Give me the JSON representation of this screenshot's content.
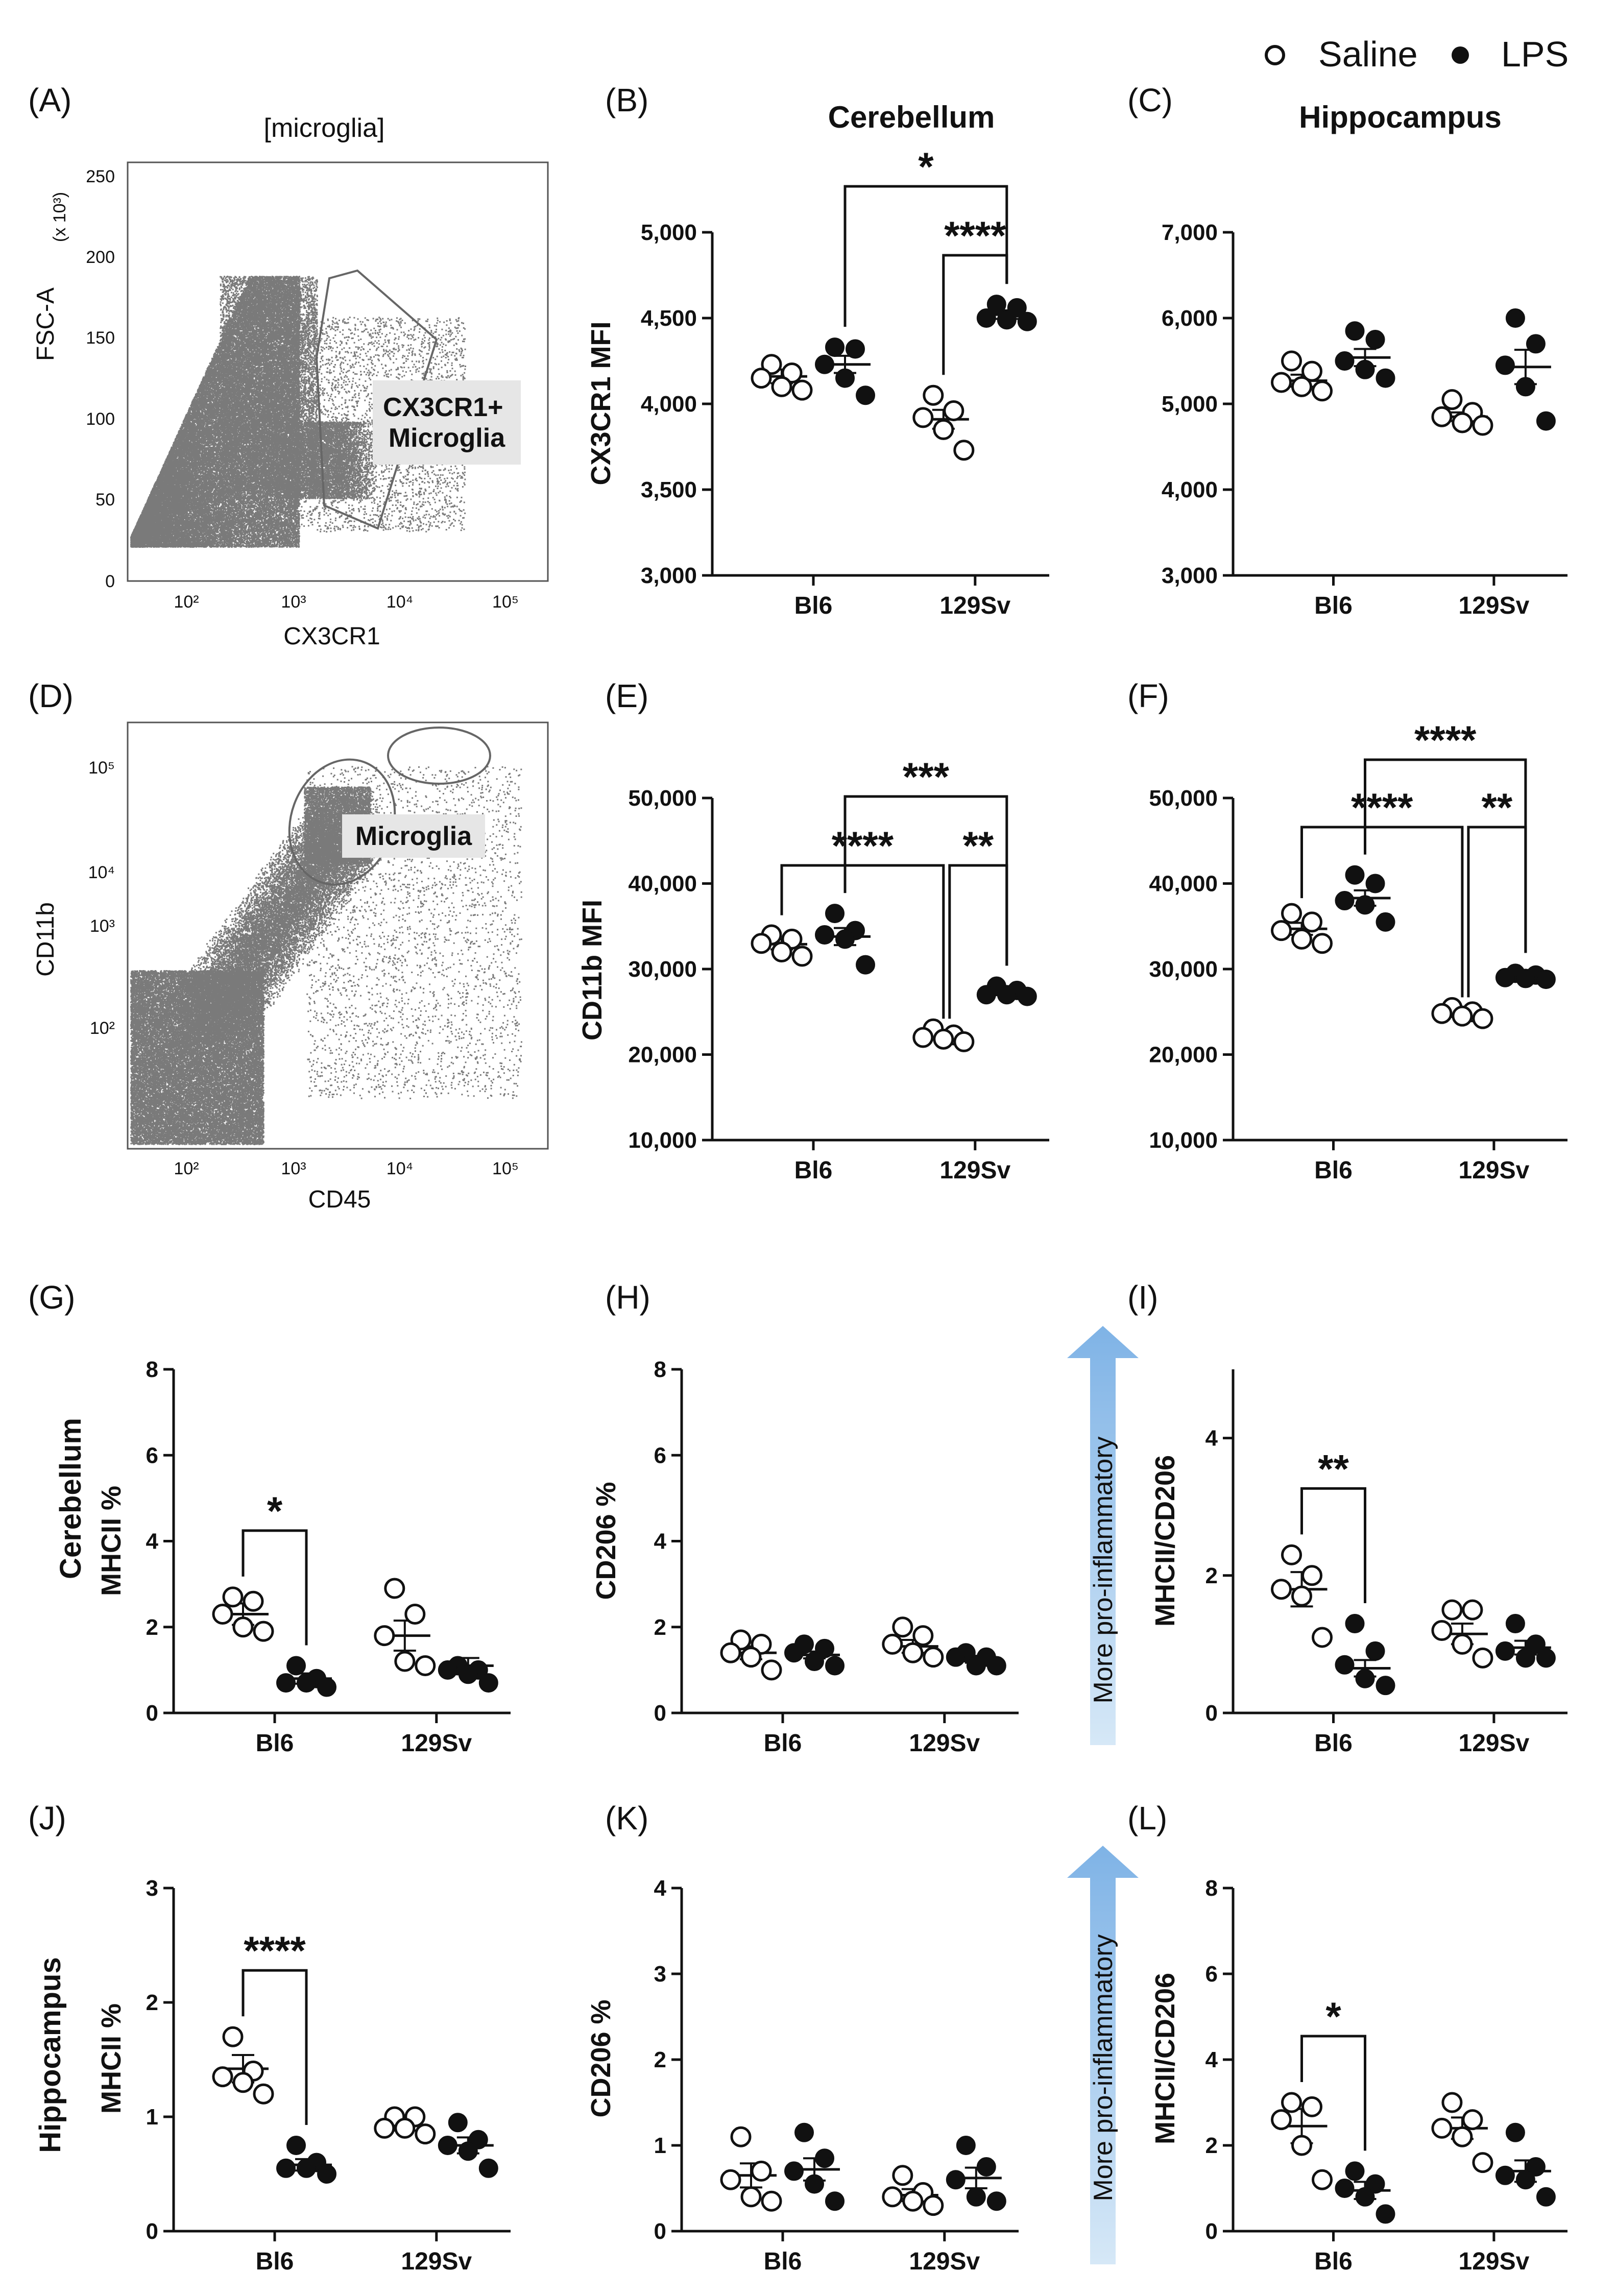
{
  "legend": {
    "saline": "Saline",
    "lps": "LPS"
  },
  "colors": {
    "dot_fill": "#111111",
    "open_fill": "#ffffff",
    "arrow_top": "#7fb3e6",
    "arrow_bottom": "#d6e8f7",
    "flow_dots": "#7a7a7a"
  },
  "row_labels": {
    "cerebellum": "Cerebellum",
    "hippocampus": "Hippocampus"
  },
  "flow_panels": [
    {
      "letter": "(A)",
      "title": "[microglia]",
      "xlabel": "CX3CR1",
      "ylabel": "FSC-A",
      "ymult": "(x 10³)",
      "xticks": [
        "10²",
        "10³",
        "10⁴",
        "10⁵"
      ],
      "yticks": [
        "0",
        "50",
        "100",
        "150",
        "200",
        "250"
      ],
      "gate_label": "CX3CR1+\nMicroglia"
    },
    {
      "letter": "(D)",
      "xlabel": "CD45",
      "ylabel": "CD11b",
      "xticks": [
        "10²",
        "10³",
        "10⁴",
        "10⁵"
      ],
      "yticks": [
        "10²",
        "10³",
        "10⁴",
        "10⁵"
      ],
      "gate_label": "Microglia"
    }
  ],
  "arrows": [
    {
      "label": "More pro-inflammatory"
    },
    {
      "label": "More pro-inflammatory"
    }
  ],
  "chart_data": [
    {
      "id": "B",
      "letter": "(B)",
      "type": "scatter",
      "title": "Cerebellum",
      "ylabel": "CX3CR1 MFI",
      "ylim": [
        3000,
        5000
      ],
      "yticks": [
        3000,
        3500,
        4000,
        4500,
        5000
      ],
      "ytick_labels": [
        "3,000",
        "3,500",
        "4,000",
        "4,500",
        "5,000"
      ],
      "categories": [
        "Bl6",
        "129Sv"
      ],
      "series": [
        {
          "name": "Saline",
          "points": [
            [
              4230,
              4180,
              4150,
              4100,
              4080
            ],
            [
              4050,
              3960,
              3920,
              3850,
              3730
            ]
          ],
          "mean": [
            4160,
            3910
          ],
          "sem": [
            40,
            55
          ]
        },
        {
          "name": "LPS",
          "points": [
            [
              4330,
              4320,
              4230,
              4150,
              4050
            ],
            [
              4580,
              4560,
              4500,
              4490,
              4480
            ]
          ],
          "mean": [
            4230,
            4520
          ],
          "sem": [
            50,
            25
          ]
        }
      ],
      "brackets": [
        {
          "from": [
            0,
            1
          ],
          "to": [
            1,
            1
          ],
          "label": "*"
        },
        {
          "from": [
            1,
            0
          ],
          "to": [
            1,
            1
          ],
          "label": "****"
        }
      ]
    },
    {
      "id": "C",
      "letter": "(C)",
      "type": "scatter",
      "title": "Hippocampus",
      "ylabel": "",
      "ylim": [
        3000,
        7000
      ],
      "yticks": [
        3000,
        4000,
        5000,
        6000,
        7000
      ],
      "ytick_labels": [
        "3,000",
        "4,000",
        "5,000",
        "6,000",
        "7,000"
      ],
      "categories": [
        "Bl6",
        "129Sv"
      ],
      "series": [
        {
          "name": "Saline",
          "points": [
            [
              5500,
              5380,
              5250,
              5200,
              5150
            ],
            [
              5050,
              4900,
              4850,
              4780,
              4750
            ]
          ],
          "mean": [
            5270,
            4850
          ],
          "sem": [
            70,
            50
          ]
        },
        {
          "name": "LPS",
          "points": [
            [
              5850,
              5750,
              5500,
              5400,
              5300
            ],
            [
              6000,
              5700,
              5450,
              5200,
              4800
            ]
          ],
          "mean": [
            5540,
            5430
          ],
          "sem": [
            100,
            200
          ]
        }
      ],
      "brackets": []
    },
    {
      "id": "E",
      "letter": "(E)",
      "type": "scatter",
      "title": "",
      "ylabel": "CD11b MFI",
      "ylim": [
        10000,
        50000
      ],
      "yticks": [
        10000,
        20000,
        30000,
        40000,
        50000
      ],
      "ytick_labels": [
        "10,000",
        "20,000",
        "30,000",
        "40,000",
        "50,000"
      ],
      "categories": [
        "Bl6",
        "129Sv"
      ],
      "series": [
        {
          "name": "Saline",
          "points": [
            [
              34000,
              33500,
              33000,
              32000,
              31500
            ],
            [
              23000,
              22300,
              22000,
              21800,
              21500
            ]
          ],
          "mean": [
            32900,
            22100
          ],
          "sem": [
            600,
            300
          ]
        },
        {
          "name": "LPS",
          "points": [
            [
              36500,
              34500,
              34000,
              33500,
              30500
            ],
            [
              28000,
              27500,
              27000,
              27000,
              26800
            ]
          ],
          "mean": [
            33800,
            27200
          ],
          "sem": [
            1000,
            250
          ]
        }
      ],
      "brackets": [
        {
          "from": [
            0,
            1
          ],
          "to": [
            1,
            1
          ],
          "label": "***"
        },
        {
          "from": [
            0,
            0
          ],
          "to": [
            1,
            0
          ],
          "label": "****"
        },
        {
          "from": [
            1,
            0
          ],
          "to": [
            1,
            1
          ],
          "label": "**"
        }
      ]
    },
    {
      "id": "F",
      "letter": "(F)",
      "type": "scatter",
      "title": "",
      "ylabel": "",
      "ylim": [
        10000,
        50000
      ],
      "yticks": [
        10000,
        20000,
        30000,
        40000,
        50000
      ],
      "ytick_labels": [
        "10,000",
        "20,000",
        "30,000",
        "40,000",
        "50,000"
      ],
      "categories": [
        "Bl6",
        "129Sv"
      ],
      "series": [
        {
          "name": "Saline",
          "points": [
            [
              36500,
              35500,
              34500,
              33500,
              33000
            ],
            [
              25500,
              25000,
              24800,
              24500,
              24200
            ]
          ],
          "mean": [
            34700,
            24800
          ],
          "sem": [
            700,
            300
          ]
        },
        {
          "name": "LPS",
          "points": [
            [
              41000,
              40000,
              38000,
              37500,
              35500
            ],
            [
              29500,
              29300,
              29000,
              28900,
              28800
            ]
          ],
          "mean": [
            38300,
            29000
          ],
          "sem": [
            900,
            150
          ]
        }
      ],
      "brackets": [
        {
          "from": [
            0,
            1
          ],
          "to": [
            1,
            1
          ],
          "label": "****"
        },
        {
          "from": [
            0,
            0
          ],
          "to": [
            1,
            0
          ],
          "label": "****"
        },
        {
          "from": [
            1,
            0
          ],
          "to": [
            1,
            1
          ],
          "label": "**"
        }
      ]
    },
    {
      "id": "G",
      "letter": "(G)",
      "type": "scatter",
      "title": "",
      "ylabel": "MHCII %",
      "ylim": [
        0,
        8
      ],
      "yticks": [
        0,
        2,
        4,
        6,
        8
      ],
      "ytick_labels": [
        "0",
        "2",
        "4",
        "6",
        "8"
      ],
      "categories": [
        "Bl6",
        "129Sv"
      ],
      "series": [
        {
          "name": "Saline",
          "points": [
            [
              2.7,
              2.6,
              2.3,
              2.0,
              1.9
            ],
            [
              2.9,
              2.3,
              1.8,
              1.2,
              1.1
            ]
          ],
          "mean": [
            2.3,
            1.8
          ],
          "sem": [
            0.25,
            0.35
          ]
        },
        {
          "name": "LPS",
          "points": [
            [
              1.1,
              0.8,
              0.7,
              0.7,
              0.6
            ],
            [
              1.1,
              1.0,
              1.0,
              0.9,
              0.7
            ]
          ],
          "mean": [
            0.8,
            1.1
          ],
          "sem": [
            0.12,
            0.18
          ]
        }
      ],
      "brackets": [
        {
          "from": [
            0,
            0
          ],
          "to": [
            0,
            1
          ],
          "label": "*"
        }
      ]
    },
    {
      "id": "H",
      "letter": "(H)",
      "type": "scatter",
      "title": "",
      "ylabel": "CD206 %",
      "ylim": [
        0,
        8
      ],
      "yticks": [
        0,
        2,
        4,
        6,
        8
      ],
      "ytick_labels": [
        "0",
        "2",
        "4",
        "6",
        "8"
      ],
      "categories": [
        "Bl6",
        "129Sv"
      ],
      "series": [
        {
          "name": "Saline",
          "points": [
            [
              1.7,
              1.6,
              1.4,
              1.3,
              1.0
            ],
            [
              2.0,
              1.8,
              1.6,
              1.4,
              1.3
            ]
          ],
          "mean": [
            1.4,
            1.55
          ],
          "sem": [
            0.15,
            0.15
          ]
        },
        {
          "name": "LPS",
          "points": [
            [
              1.6,
              1.5,
              1.4,
              1.2,
              1.1
            ],
            [
              1.4,
              1.3,
              1.3,
              1.1,
              1.1
            ]
          ],
          "mean": [
            1.35,
            1.25
          ],
          "sem": [
            0.08,
            0.08
          ]
        }
      ],
      "brackets": []
    },
    {
      "id": "I",
      "letter": "(I)",
      "type": "scatter",
      "title": "",
      "ylabel": "MHCII/CD206",
      "ylim": [
        0,
        5
      ],
      "yticks": [
        0,
        2,
        4
      ],
      "ytick_labels": [
        "0",
        "2",
        "4"
      ],
      "categories": [
        "Bl6",
        "129Sv"
      ],
      "series": [
        {
          "name": "Saline",
          "points": [
            [
              2.3,
              2.0,
              1.8,
              1.7,
              1.1
            ],
            [
              1.5,
              1.5,
              1.2,
              1.0,
              0.8
            ]
          ],
          "mean": [
            1.8,
            1.15
          ],
          "sem": [
            0.25,
            0.15
          ]
        },
        {
          "name": "LPS",
          "points": [
            [
              1.3,
              0.9,
              0.7,
              0.5,
              0.4
            ],
            [
              1.3,
              1.0,
              0.9,
              0.8,
              0.8
            ]
          ],
          "mean": [
            0.65,
            0.95
          ],
          "sem": [
            0.12,
            0.1
          ]
        }
      ],
      "brackets": [
        {
          "from": [
            0,
            0
          ],
          "to": [
            0,
            1
          ],
          "label": "**"
        }
      ]
    },
    {
      "id": "J",
      "letter": "(J)",
      "type": "scatter",
      "title": "",
      "ylabel": "MHCII %",
      "ylim": [
        0,
        3
      ],
      "yticks": [
        0,
        1,
        2,
        3
      ],
      "ytick_labels": [
        "0",
        "1",
        "2",
        "3"
      ],
      "categories": [
        "Bl6",
        "129Sv"
      ],
      "series": [
        {
          "name": "Saline",
          "points": [
            [
              1.7,
              1.4,
              1.35,
              1.3,
              1.2
            ],
            [
              1.0,
              1.0,
              0.9,
              0.9,
              0.85
            ]
          ],
          "mean": [
            1.42,
            0.92
          ],
          "sem": [
            0.12,
            0.04
          ]
        },
        {
          "name": "LPS",
          "points": [
            [
              0.75,
              0.6,
              0.55,
              0.55,
              0.5
            ],
            [
              0.95,
              0.8,
              0.75,
              0.7,
              0.55
            ]
          ],
          "mean": [
            0.58,
            0.75
          ],
          "sem": [
            0.05,
            0.07
          ]
        }
      ],
      "brackets": [
        {
          "from": [
            0,
            0
          ],
          "to": [
            0,
            1
          ],
          "label": "****"
        }
      ]
    },
    {
      "id": "K",
      "letter": "(K)",
      "type": "scatter",
      "title": "",
      "ylabel": "CD206 %",
      "ylim": [
        0,
        4
      ],
      "yticks": [
        0,
        1,
        2,
        3,
        4
      ],
      "ytick_labels": [
        "0",
        "1",
        "2",
        "3",
        "4"
      ],
      "categories": [
        "Bl6",
        "129Sv"
      ],
      "series": [
        {
          "name": "Saline",
          "points": [
            [
              1.1,
              0.7,
              0.6,
              0.4,
              0.35
            ],
            [
              0.65,
              0.45,
              0.4,
              0.35,
              0.3
            ]
          ],
          "mean": [
            0.65,
            0.42
          ],
          "sem": [
            0.14,
            0.07
          ]
        },
        {
          "name": "LPS",
          "points": [
            [
              1.15,
              0.85,
              0.7,
              0.55,
              0.35
            ],
            [
              1.0,
              0.75,
              0.6,
              0.4,
              0.35
            ]
          ],
          "mean": [
            0.72,
            0.62
          ],
          "sem": [
            0.13,
            0.12
          ]
        }
      ],
      "brackets": []
    },
    {
      "id": "L",
      "letter": "(L)",
      "type": "scatter",
      "title": "",
      "ylabel": "MHCII/CD206",
      "ylim": [
        0,
        8
      ],
      "yticks": [
        0,
        2,
        4,
        6,
        8
      ],
      "ytick_labels": [
        "0",
        "2",
        "4",
        "6",
        "8"
      ],
      "categories": [
        "Bl6",
        "129Sv"
      ],
      "series": [
        {
          "name": "Saline",
          "points": [
            [
              3.0,
              2.9,
              2.6,
              2.0,
              1.2
            ],
            [
              3.0,
              2.6,
              2.4,
              2.2,
              1.6
            ]
          ],
          "mean": [
            2.45,
            2.4
          ],
          "sem": [
            0.4,
            0.25
          ]
        },
        {
          "name": "LPS",
          "points": [
            [
              1.4,
              1.1,
              1.0,
              0.8,
              0.4
            ],
            [
              2.3,
              1.5,
              1.3,
              1.2,
              0.8
            ]
          ],
          "mean": [
            0.95,
            1.4
          ],
          "sem": [
            0.2,
            0.25
          ]
        }
      ],
      "brackets": [
        {
          "from": [
            0,
            0
          ],
          "to": [
            0,
            1
          ],
          "label": "*"
        }
      ]
    }
  ]
}
